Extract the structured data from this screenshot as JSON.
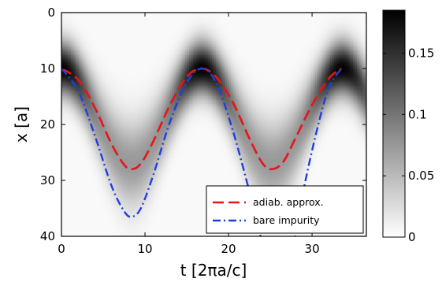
{
  "chart_data": {
    "type": "heatmap",
    "xlabel": "t [2πa/c]",
    "ylabel": "x [a]",
    "xlim": [
      0,
      36.5
    ],
    "ylim": [
      40,
      0
    ],
    "xticks": [
      "0",
      "10",
      "20",
      "30"
    ],
    "yticks": [
      "0",
      "10",
      "20",
      "30",
      "40"
    ],
    "colorbar": {
      "range": [
        0,
        0.185
      ],
      "ticks": [
        "0",
        "0.05",
        "0.1",
        "0.15"
      ],
      "colormap": "white-to-black"
    },
    "heatmap_density": {
      "description_model": "gaussian packet oscillating between x=10 and x=27 with period 16.8",
      "peak_value": 0.185
    },
    "series": [
      {
        "name": "adiab. approx.",
        "color": "#e8141a",
        "style": "dashed",
        "points": [
          [
            0,
            10
          ],
          [
            2,
            12
          ],
          [
            4,
            17
          ],
          [
            6,
            23.5
          ],
          [
            7.5,
            27.2
          ],
          [
            8.4,
            28
          ],
          [
            9.5,
            27
          ],
          [
            11,
            23
          ],
          [
            13,
            16.5
          ],
          [
            15,
            11.5
          ],
          [
            16.8,
            10
          ],
          [
            18.5,
            11.5
          ],
          [
            20.5,
            16
          ],
          [
            22.5,
            22.5
          ],
          [
            24,
            26.8
          ],
          [
            25.1,
            28
          ],
          [
            26.5,
            26.8
          ],
          [
            28,
            22.5
          ],
          [
            30,
            16.5
          ],
          [
            32,
            11.8
          ],
          [
            33.5,
            10
          ]
        ]
      },
      {
        "name": "bare impurity",
        "color": "#1f3fe0",
        "style": "dashdot",
        "points": [
          [
            0,
            10
          ],
          [
            2,
            14
          ],
          [
            4,
            22
          ],
          [
            6,
            31
          ],
          [
            7.5,
            35.5
          ],
          [
            8.4,
            36.5
          ],
          [
            9.5,
            35
          ],
          [
            11,
            29
          ],
          [
            13,
            19.5
          ],
          [
            15,
            12.5
          ],
          [
            16.8,
            10
          ],
          [
            18.5,
            12.5
          ],
          [
            20.5,
            21
          ],
          [
            22.5,
            32
          ]
        ],
        "points_resume": [
          [
            30.5,
            21.5
          ],
          [
            32,
            13.5
          ],
          [
            33.5,
            10
          ]
        ]
      }
    ],
    "legend": {
      "placement": "bottom-right",
      "entries": [
        "adiab. approx.",
        "bare impurity"
      ]
    }
  }
}
